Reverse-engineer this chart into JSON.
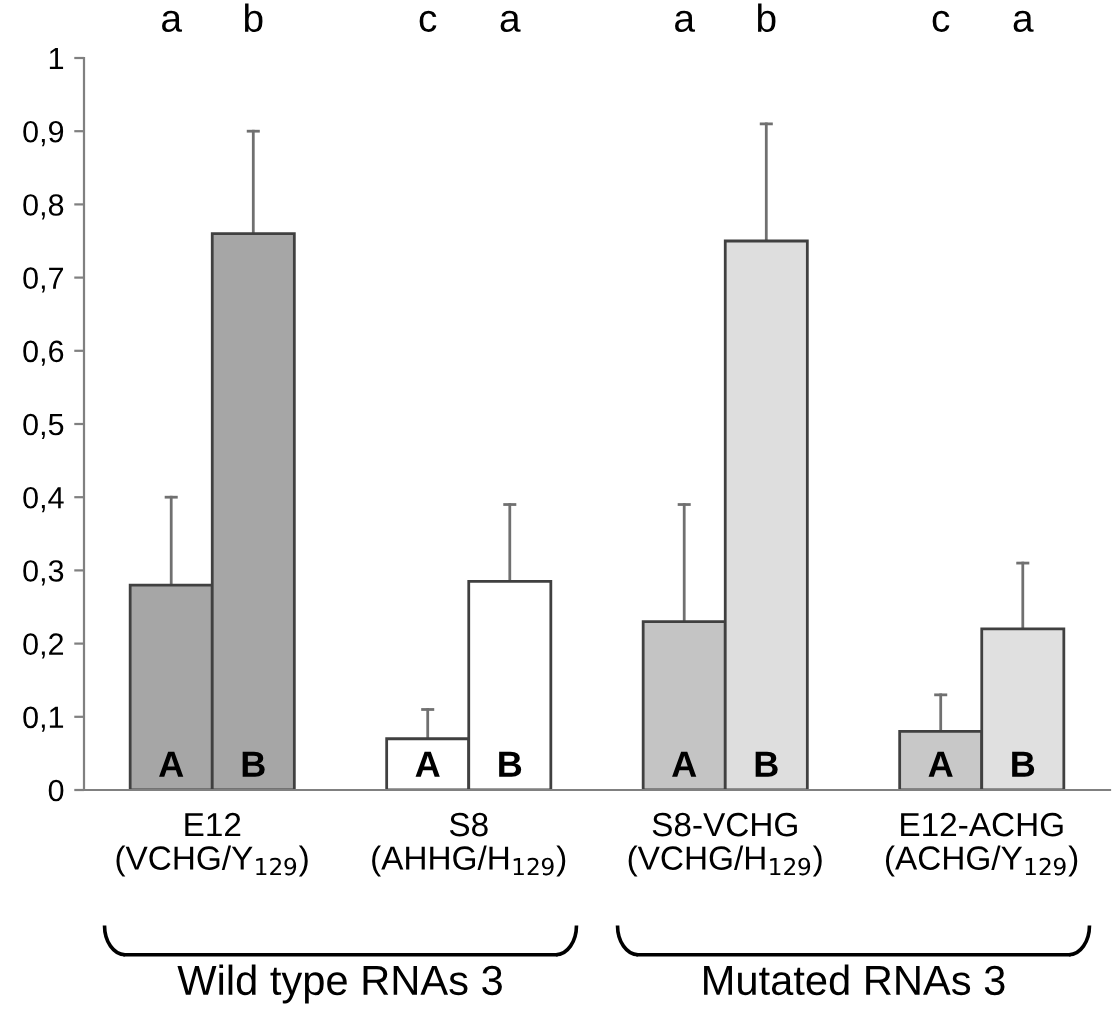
{
  "chart_data": {
    "type": "bar",
    "categories": [
      "E12\n(VCHG/Y$_{129}$)",
      "S8\n(AHHG/H$_{129}$)",
      "S8-VCHG\n(VCHG/H$_{129}$)",
      "E12-ACHG\n(ACHG/Y$_{129}$)"
    ],
    "series": [
      {
        "name": "A",
        "colors": [
          "#a6a6a6",
          "#ffffff",
          "#c4c4c4",
          "#c8c8c8"
        ],
        "values": [
          0.28,
          0.07,
          0.23,
          0.08
        ],
        "errors": [
          [
            0.28,
            0.4
          ],
          [
            0.07,
            0.11
          ],
          [
            0.23,
            0.39
          ],
          [
            0.08,
            0.13
          ]
        ]
      },
      {
        "name": "B",
        "colors": [
          "#a6a6a6",
          "#ffffff",
          "#dedede",
          "#e0e0e0"
        ],
        "values": [
          0.76,
          0.285,
          0.75,
          0.22
        ],
        "errors": [
          [
            0.76,
            0.9
          ],
          [
            0.285,
            0.39
          ],
          [
            0.75,
            0.91
          ],
          [
            0.22,
            0.31
          ]
        ]
      }
    ],
    "ylim": [
      0,
      1
    ],
    "yticks": [
      0,
      {
        "value": 0.1,
        "label": "0,1"
      },
      {
        "value": 0.2,
        "label": "0,2"
      },
      {
        "value": 0.3,
        "label": "0,3"
      },
      {
        "value": 0.4,
        "label": "0,4"
      },
      {
        "value": 0.5,
        "label": "0,5"
      },
      {
        "value": 0.6,
        "label": "0,6"
      },
      {
        "value": 0.7,
        "label": "0,7"
      },
      {
        "value": 0.8,
        "label": "0,8"
      },
      {
        "value": 0.9,
        "label": "0,9"
      },
      1
    ],
    "annotations": [
      "a",
      "b",
      "c",
      "a",
      "a",
      "b",
      "c",
      "a",
      "Wild type RNAs 3",
      "Mutated RNAs 3"
    ],
    "grid": false,
    "legend": false
  }
}
